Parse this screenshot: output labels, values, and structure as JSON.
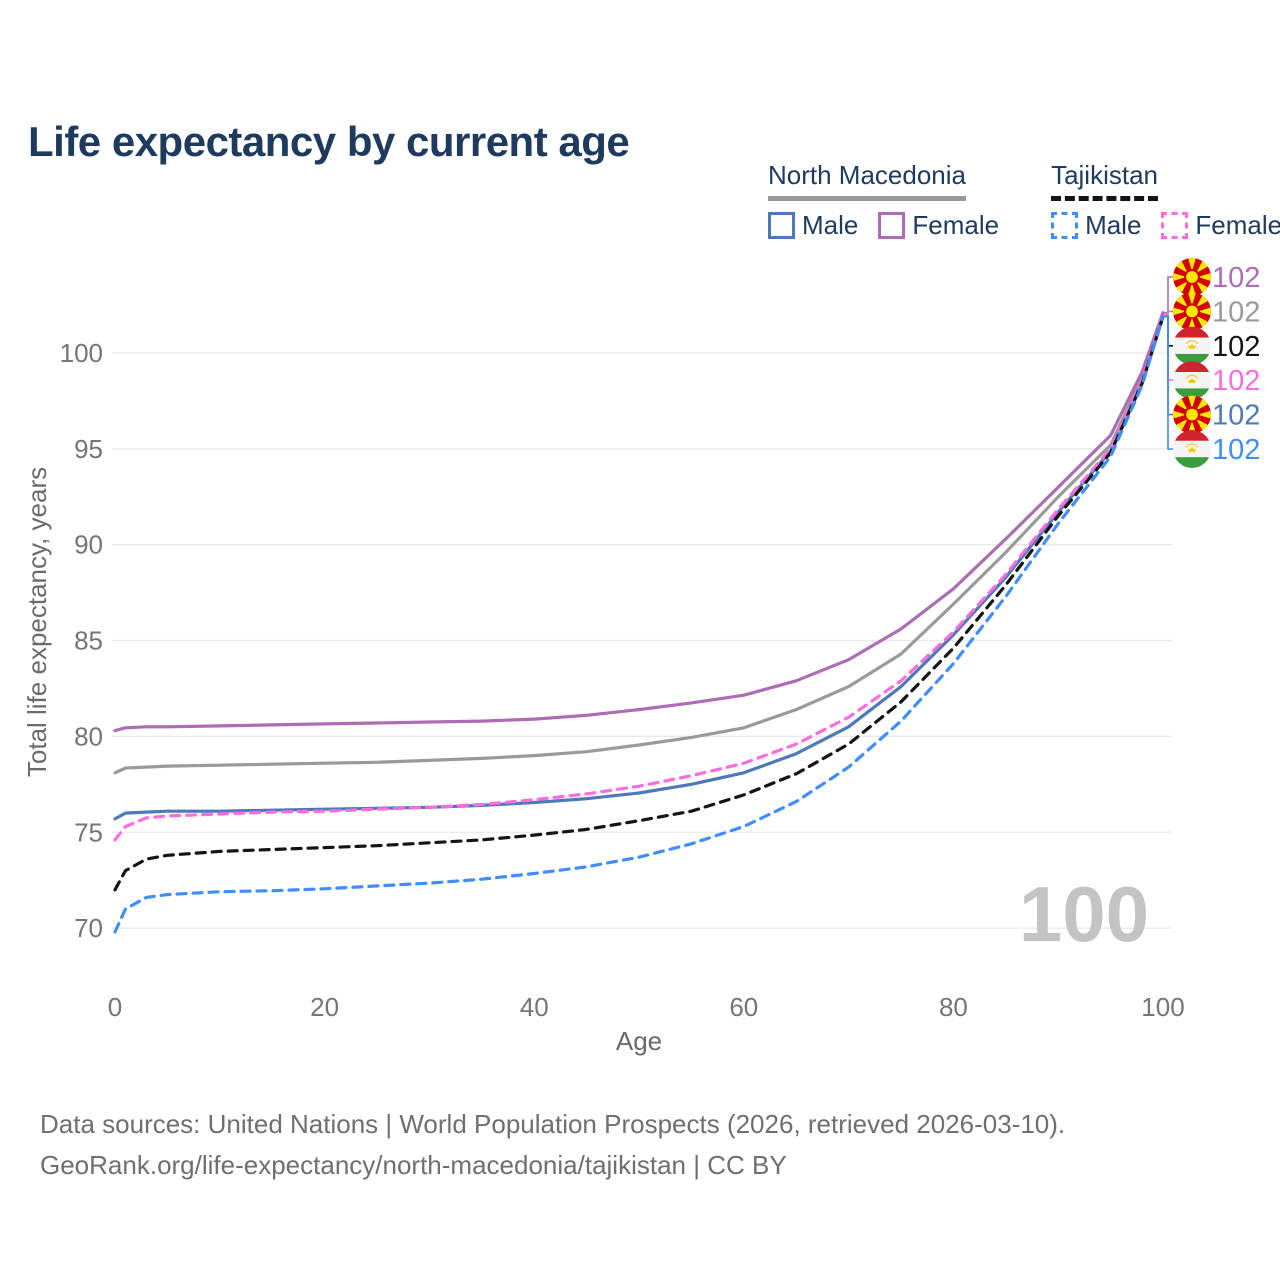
{
  "title": "Life expectancy by current age",
  "legend": {
    "groups": [
      {
        "name": "North Macedonia",
        "underline_style": "solid",
        "items": [
          {
            "label": "Male",
            "color_key": "nm_male",
            "dashed": false
          },
          {
            "label": "Female",
            "color_key": "nm_female",
            "dashed": false
          }
        ]
      },
      {
        "name": "Tajikistan",
        "underline_style": "dashed",
        "items": [
          {
            "label": "Male",
            "color_key": "tj_male",
            "dashed": true
          },
          {
            "label": "Female",
            "color_key": "tj_female",
            "dashed": true
          }
        ]
      }
    ]
  },
  "colors": {
    "nm_male": "#4e79b8",
    "nm_female": "#ae6cb5",
    "nm_total": "#9a9a9a",
    "tj_male": "#3f8efc",
    "tj_female": "#fc6edd",
    "tj_total": "#141414",
    "nm_underline": "#9a9a9a",
    "tj_underline": "#141414",
    "title_text": "#1e3a5f",
    "axis_text": "#757575",
    "grid": "#e9e9e9",
    "watermark": "#c3c3c3",
    "footer_text": "#6f6f6f"
  },
  "chart_data": {
    "type": "line",
    "title": "Life expectancy by current age",
    "xlabel": "Age",
    "ylabel": "Total life expectancy, years",
    "xlim": [
      0,
      100
    ],
    "ylim": [
      68,
      103.5
    ],
    "xticks": [
      0,
      20,
      40,
      60,
      80,
      100
    ],
    "yticks": [
      70,
      75,
      80,
      85,
      90,
      95,
      100
    ],
    "grid": true,
    "legend_position": "top-right",
    "watermark": "100",
    "x": [
      0,
      1,
      3,
      5,
      10,
      15,
      20,
      25,
      30,
      35,
      40,
      45,
      50,
      55,
      60,
      65,
      70,
      75,
      80,
      85,
      90,
      95,
      98,
      100
    ],
    "series": [
      {
        "name": "North Macedonia Female",
        "country": "North Macedonia",
        "group_label": "Female",
        "flag": "mk",
        "color_key": "nm_female",
        "dashed": false,
        "end_label": "102",
        "values": [
          80.3,
          80.45,
          80.5,
          80.5,
          80.55,
          80.6,
          80.65,
          80.7,
          80.75,
          80.8,
          80.9,
          81.1,
          81.4,
          81.75,
          82.15,
          82.9,
          84.0,
          85.6,
          87.7,
          90.3,
          93.0,
          95.7,
          99.0,
          102.1
        ]
      },
      {
        "name": "North Macedonia Total",
        "country": "North Macedonia",
        "group_label": "North Macedonia",
        "flag": "mk",
        "color_key": "nm_total",
        "dashed": false,
        "end_label": "102",
        "values": [
          78.1,
          78.35,
          78.4,
          78.45,
          78.5,
          78.55,
          78.6,
          78.65,
          78.75,
          78.85,
          79.0,
          79.2,
          79.55,
          79.95,
          80.45,
          81.4,
          82.6,
          84.3,
          86.9,
          89.6,
          92.5,
          95.2,
          98.7,
          102.0
        ]
      },
      {
        "name": "Tajikistan Total",
        "country": "Tajikistan",
        "group_label": "Tajikistan",
        "flag": "tj",
        "color_key": "tj_total",
        "dashed": true,
        "end_label": "102",
        "values": [
          72.0,
          73.0,
          73.6,
          73.8,
          74.0,
          74.1,
          74.2,
          74.3,
          74.45,
          74.6,
          74.85,
          75.15,
          75.6,
          76.1,
          76.95,
          78.05,
          79.6,
          81.8,
          84.6,
          87.9,
          91.5,
          94.8,
          98.4,
          101.9
        ]
      },
      {
        "name": "Tajikistan Female",
        "country": "Tajikistan",
        "group_label": "Female",
        "flag": "tj",
        "color_key": "tj_female",
        "dashed": true,
        "end_label": "102",
        "values": [
          74.6,
          75.3,
          75.75,
          75.85,
          75.95,
          76.05,
          76.1,
          76.2,
          76.3,
          76.45,
          76.7,
          77.0,
          77.4,
          77.95,
          78.6,
          79.6,
          81.0,
          82.9,
          85.45,
          88.45,
          91.85,
          95.0,
          98.55,
          102.0
        ]
      },
      {
        "name": "North Macedonia Male",
        "country": "North Macedonia",
        "group_label": "Male",
        "flag": "mk",
        "color_key": "nm_male",
        "dashed": false,
        "end_label": "102",
        "values": [
          75.7,
          76.0,
          76.05,
          76.1,
          76.1,
          76.15,
          76.2,
          76.25,
          76.3,
          76.4,
          76.55,
          76.75,
          77.05,
          77.5,
          78.1,
          79.1,
          80.5,
          82.6,
          85.3,
          88.3,
          91.7,
          94.9,
          98.5,
          101.9
        ]
      },
      {
        "name": "Tajikistan Male",
        "country": "Tajikistan",
        "group_label": "Male",
        "flag": "tj",
        "color_key": "tj_male",
        "dashed": true,
        "end_label": "102",
        "values": [
          69.8,
          71.0,
          71.6,
          71.75,
          71.9,
          71.95,
          72.05,
          72.2,
          72.35,
          72.55,
          72.85,
          73.2,
          73.7,
          74.4,
          75.3,
          76.6,
          78.4,
          80.8,
          83.8,
          87.3,
          91.1,
          94.6,
          98.3,
          101.9
        ]
      }
    ]
  },
  "footer": {
    "line1": "Data sources: United Nations | World Population Prospects (2026, retrieved 2026-03-10).",
    "line2": "GeoRank.org/life-expectancy/north-macedonia/tajikistan | CC BY"
  }
}
